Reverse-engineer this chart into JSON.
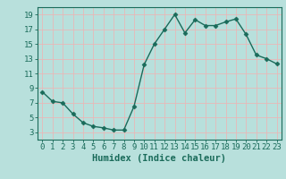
{
  "x": [
    0,
    1,
    2,
    3,
    4,
    5,
    6,
    7,
    8,
    9,
    10,
    11,
    12,
    13,
    14,
    15,
    16,
    17,
    18,
    19,
    20,
    21,
    22,
    23
  ],
  "y": [
    8.5,
    7.2,
    7.0,
    5.5,
    4.3,
    3.8,
    3.6,
    3.3,
    3.3,
    6.5,
    12.2,
    15.0,
    17.0,
    19.0,
    16.5,
    18.3,
    17.5,
    17.5,
    18.0,
    18.4,
    16.3,
    13.5,
    13.0,
    12.3
  ],
  "line_color": "#1a6b5a",
  "marker": "D",
  "markersize": 2.5,
  "linewidth": 1.0,
  "bg_color": "#b8e0dc",
  "grid_color": "#e8b8b8",
  "xlabel": "Humidex (Indice chaleur)",
  "xlim": [
    -0.5,
    23.5
  ],
  "ylim": [
    2,
    20
  ],
  "yticks": [
    3,
    5,
    7,
    9,
    11,
    13,
    15,
    17,
    19
  ],
  "xticks": [
    0,
    1,
    2,
    3,
    4,
    5,
    6,
    7,
    8,
    9,
    10,
    11,
    12,
    13,
    14,
    15,
    16,
    17,
    18,
    19,
    20,
    21,
    22,
    23
  ],
  "xlabel_fontsize": 7.5,
  "tick_fontsize": 6.5
}
